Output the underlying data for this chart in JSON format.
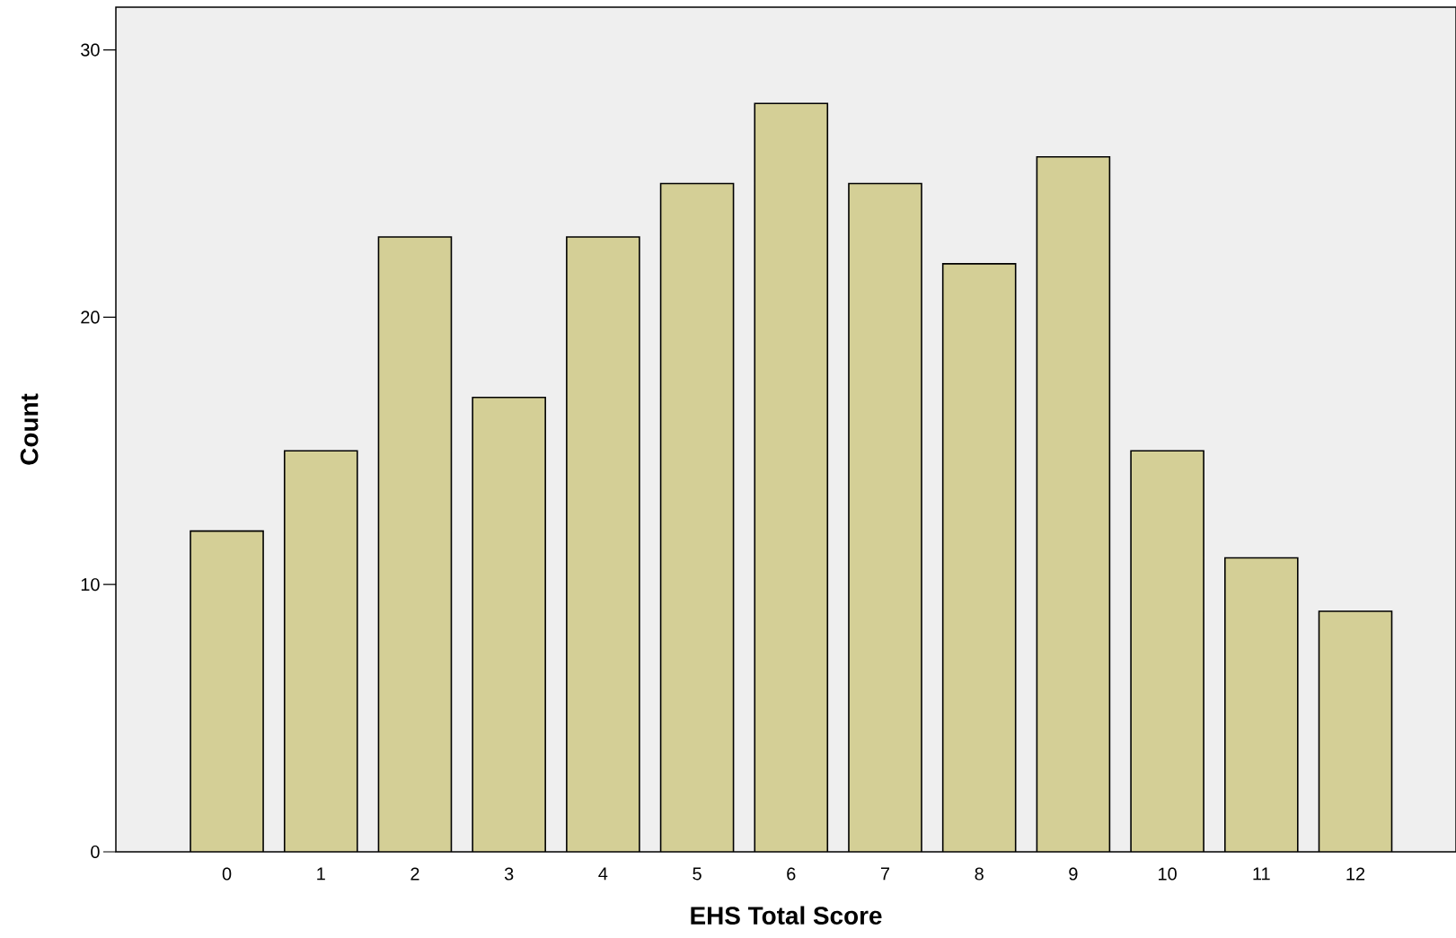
{
  "chart_data": {
    "type": "bar",
    "xlabel": "EHS Total Score",
    "ylabel": "Count",
    "categories": [
      "0",
      "1",
      "2",
      "3",
      "4",
      "5",
      "6",
      "7",
      "8",
      "9",
      "10",
      "11",
      "12"
    ],
    "values": [
      12,
      15,
      23,
      17,
      23,
      25,
      28,
      25,
      22,
      26,
      15,
      11,
      9
    ],
    "color": "#d4cf96",
    "ylim": [
      0,
      31.6
    ],
    "yticks": [
      0,
      10,
      20,
      30
    ],
    "grid": false
  }
}
